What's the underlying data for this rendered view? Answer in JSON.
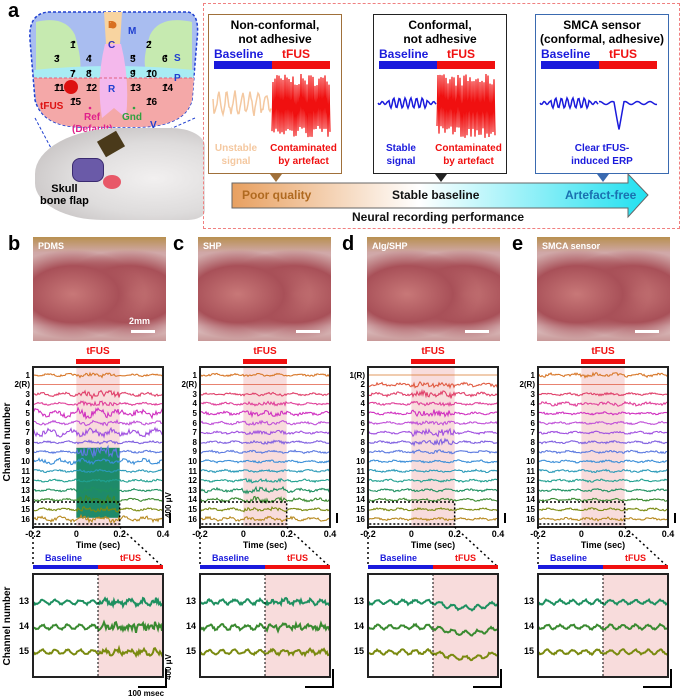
{
  "panel_a": {
    "label": "a",
    "map": {
      "regions": {
        "B": "B",
        "C": "C",
        "M": "M",
        "S": "S",
        "P": "P",
        "R": "R",
        "V": "V"
      },
      "electrodes": [
        "1",
        "2",
        "3",
        "4",
        "5",
        "6",
        "7",
        "8",
        "9",
        "10",
        "11",
        "12",
        "13",
        "14",
        "15",
        "16"
      ],
      "tfus": "tFUS",
      "ref": "Ref",
      "ref2": "(Default)",
      "gnd": "Gnd"
    },
    "skull_label": [
      "Skull",
      "bone flap"
    ],
    "cases": [
      {
        "title": [
          "Non-conformal,",
          "not adhesive"
        ],
        "baseline": "Baseline",
        "tfus": "tFUS",
        "note_left": [
          "Unstable",
          "signal"
        ],
        "note_right": [
          "Contaminated",
          "by artefact"
        ],
        "border": "#a0703a"
      },
      {
        "title": [
          "Conformal,",
          "not adhesive"
        ],
        "baseline": "Baseline",
        "tfus": "tFUS",
        "note_left": [
          "Stable",
          "signal"
        ],
        "note_right": [
          "Contaminated",
          "by artefact"
        ],
        "border": "#222222"
      },
      {
        "title": [
          "SMCA sensor",
          "(conformal, adhesive)"
        ],
        "baseline": "Baseline",
        "tfus": "tFUS",
        "note_center": [
          "Clear tFUS-",
          "induced ERP"
        ],
        "border": "#3a6ab0"
      }
    ],
    "arrow": {
      "left": "Poor quality",
      "middle": "Stable baseline",
      "right": "Artefact-free",
      "caption": "Neural recording performance"
    }
  },
  "panels": [
    {
      "label": "b",
      "photo_label": "PDMS",
      "scale_label": "2mm",
      "channels": [
        "1",
        "2(R)",
        "3",
        "4",
        "5",
        "6",
        "7",
        "8",
        "9",
        "10",
        "11",
        "12",
        "13",
        "14",
        "15",
        "16"
      ]
    },
    {
      "label": "c",
      "photo_label": "SHP",
      "channels": [
        "1",
        "2(R)",
        "3",
        "4",
        "5",
        "6",
        "7",
        "8",
        "9",
        "10",
        "11",
        "12",
        "13",
        "14",
        "15",
        "16"
      ]
    },
    {
      "label": "d",
      "photo_label": "Alg/SHP",
      "channels": [
        "1(R)",
        "2",
        "3",
        "4",
        "5",
        "6",
        "7",
        "8",
        "9",
        "10",
        "11",
        "12",
        "13",
        "14",
        "15",
        "16"
      ]
    },
    {
      "label": "e",
      "photo_label": "SMCA sensor",
      "channels": [
        "1",
        "2(R)",
        "3",
        "4",
        "5",
        "6",
        "7",
        "8",
        "9",
        "10",
        "11",
        "12",
        "13",
        "14",
        "15",
        "16"
      ]
    }
  ],
  "traces": {
    "tfus_label": "tFUS",
    "xticks": [
      "-0.2",
      "0",
      "0.2",
      "0.4"
    ],
    "xlabel": "Time (sec)",
    "ylabel": "Channel number",
    "scale_v": "400 μV"
  },
  "zoom": {
    "baseline": "Baseline",
    "tfus": "tFUS",
    "channels": [
      "13",
      "14",
      "15"
    ],
    "ylabel": "Channel number",
    "scale_v": "400 μV",
    "scale_t": "100 msec"
  },
  "colors": {
    "baseline": "#1a1adc",
    "tfus": "#f01010",
    "shade": "#f8dcdc"
  }
}
